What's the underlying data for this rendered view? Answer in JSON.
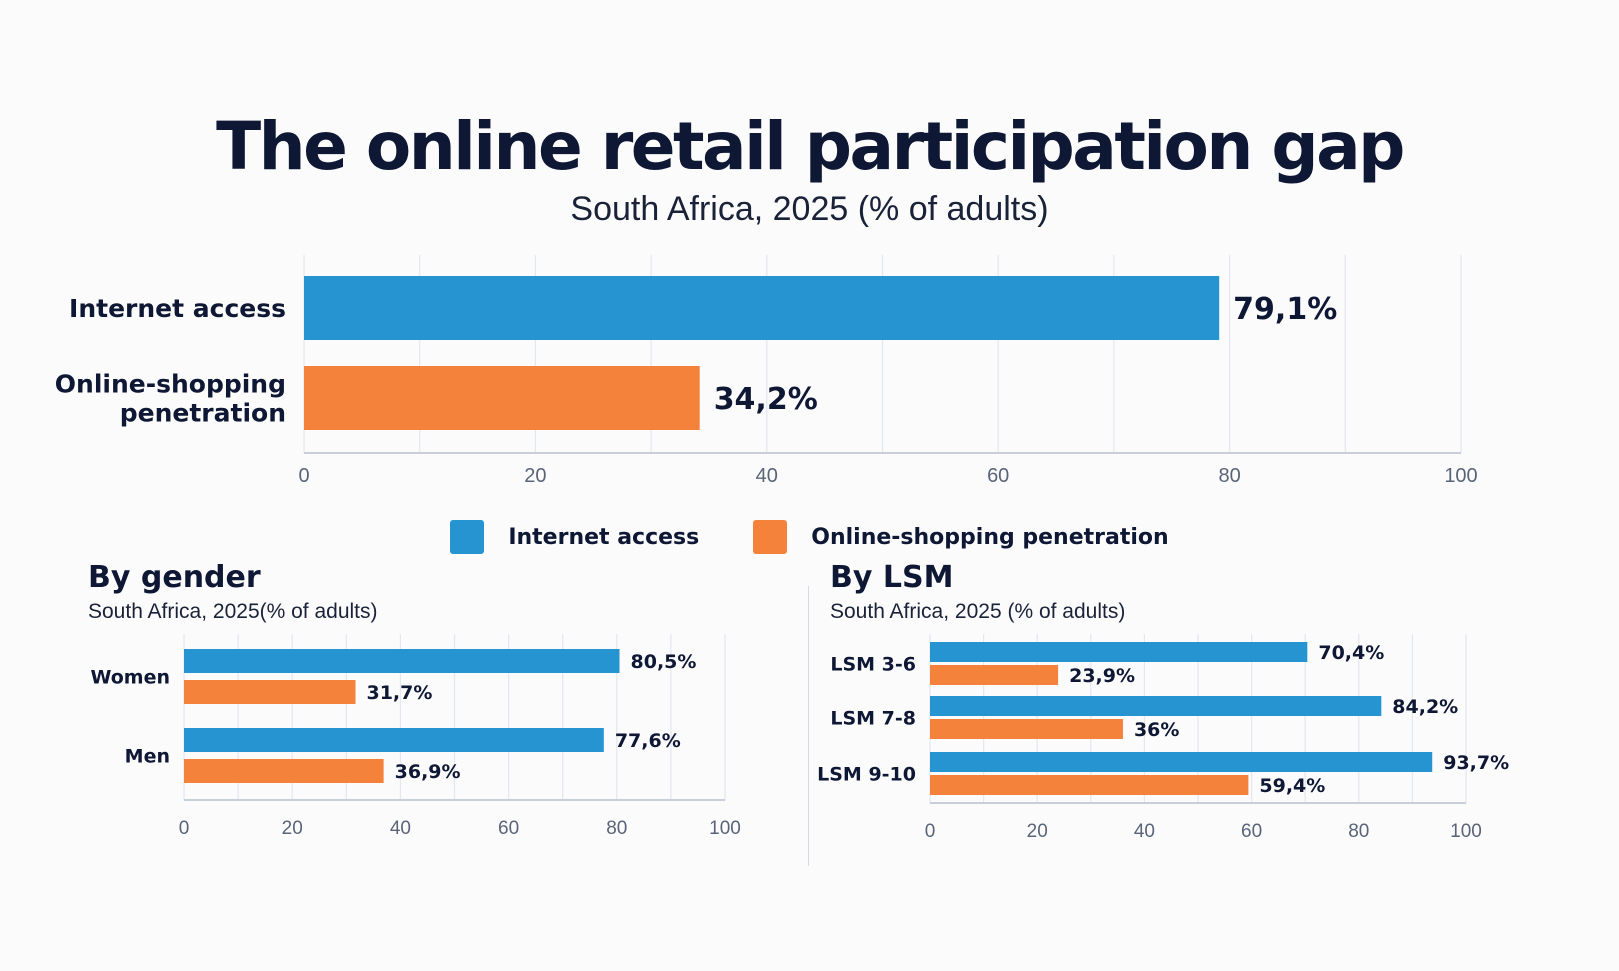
{
  "header": {
    "title": "The online retail participation gap",
    "subtitle": "South Africa, 2025 (% of adults)"
  },
  "legend": {
    "items": [
      {
        "label": "Internet access",
        "color": "#2594d0"
      },
      {
        "label": "Online-shopping penetration",
        "color": "#f5823a"
      }
    ]
  },
  "panels": {
    "gender": {
      "title": "By gender",
      "subtitle": "South Africa, 2025(% of adults)"
    },
    "lsm": {
      "title": "By LSM",
      "subtitle": "South Africa, 2025 (% of adults)"
    }
  },
  "chart_data": [
    {
      "type": "bar",
      "orientation": "horizontal",
      "categories": [
        "Internet access",
        "Online-shopping\npenetration"
      ],
      "values": [
        79.1,
        34.2
      ],
      "labels": [
        "79,1%",
        "34,2%"
      ],
      "colors": [
        "#2594d0",
        "#f5823a"
      ],
      "xlim": [
        0,
        100
      ],
      "xticks": [
        0,
        20,
        40,
        60,
        80,
        100
      ],
      "grid": true
    },
    {
      "type": "bar",
      "orientation": "horizontal",
      "title": "By gender",
      "categories": [
        "Women",
        "Men"
      ],
      "series": [
        {
          "name": "Internet access",
          "values": [
            80.5,
            77.6
          ],
          "labels": [
            "80,5%",
            "77,6%"
          ],
          "color": "#2594d0"
        },
        {
          "name": "Online-shopping penetration",
          "values": [
            31.7,
            36.9
          ],
          "labels": [
            "31,7%",
            "36,9%"
          ],
          "color": "#f5823a"
        }
      ],
      "xlim": [
        0,
        100
      ],
      "xticks": [
        0,
        20,
        40,
        60,
        80,
        100
      ],
      "grid": true
    },
    {
      "type": "bar",
      "orientation": "horizontal",
      "title": "By LSM",
      "categories": [
        "LSM 3-6",
        "LSM 7-8",
        "LSM 9-10"
      ],
      "series": [
        {
          "name": "Internet access",
          "values": [
            70.4,
            84.2,
            93.7
          ],
          "labels": [
            "70,4%",
            "84,2%",
            "93,7%"
          ],
          "color": "#2594d0"
        },
        {
          "name": "Online-shopping penetration",
          "values": [
            23.9,
            36,
            59.4
          ],
          "labels": [
            "23,9%",
            "36%",
            "59,4%"
          ],
          "color": "#f5823a"
        }
      ],
      "xlim": [
        0,
        100
      ],
      "xticks": [
        0,
        20,
        40,
        60,
        80,
        100
      ],
      "grid": true
    }
  ]
}
